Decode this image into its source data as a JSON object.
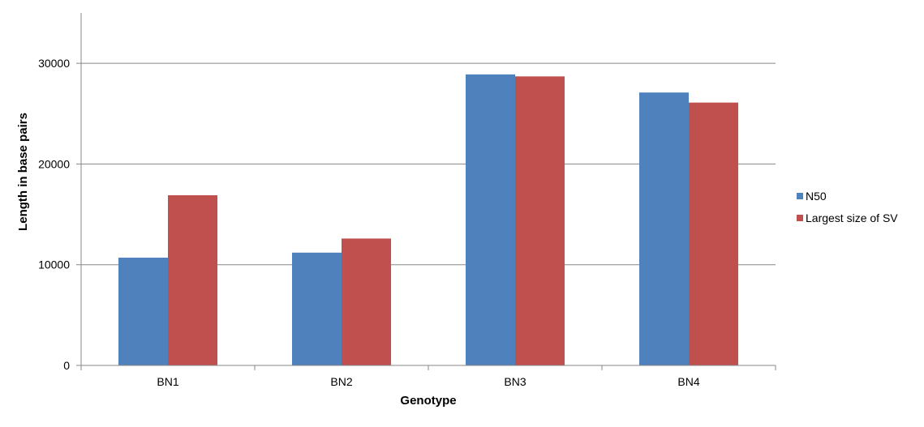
{
  "chart_data": {
    "type": "bar",
    "title": "",
    "xlabel": "Genotype",
    "ylabel": "Length in base pairs",
    "categories": [
      "BN1",
      "BN2",
      "BN3",
      "BN4"
    ],
    "series": [
      {
        "name": "N50",
        "values": [
          10700,
          11200,
          28900,
          27100
        ],
        "color": "#4f81bd"
      },
      {
        "name": "Largest size of SV",
        "values": [
          16900,
          12600,
          28700,
          26100
        ],
        "color": "#c0504d"
      }
    ],
    "ylim": [
      0,
      35000
    ],
    "yticks": [
      0,
      10000,
      20000,
      30000
    ],
    "ytick_labels": [
      "0",
      "10000",
      "20000",
      "30000"
    ],
    "grid": true,
    "legend_position": "right"
  }
}
